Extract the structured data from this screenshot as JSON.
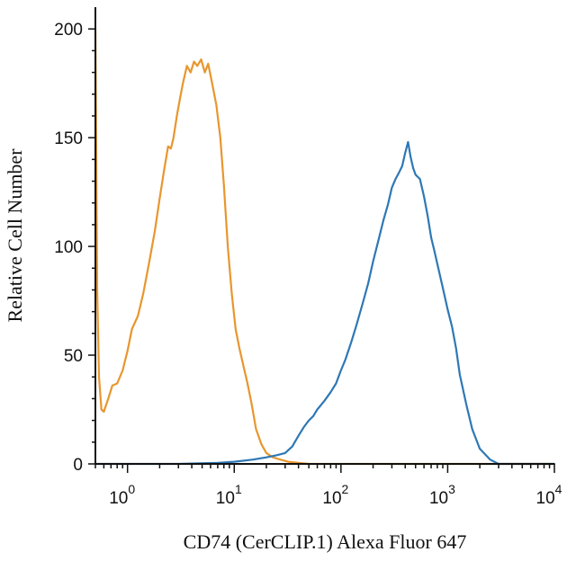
{
  "chart_data": {
    "type": "line",
    "title": "",
    "xlabel": "CD74 (CerCLIP.1) Alexa Fluor 647",
    "ylabel": "Relative Cell Number",
    "x_scale": "log",
    "xlim": [
      0.5,
      10000
    ],
    "ylim": [
      0,
      210
    ],
    "grid": false,
    "legend": "none",
    "y_ticks": [
      0,
      50,
      100,
      150,
      200
    ],
    "y_tick_labels": [
      "0",
      "50",
      "100",
      "150",
      "200"
    ],
    "x_ticks": [
      1,
      10,
      100,
      1000,
      10000
    ],
    "x_tick_labels": [
      {
        "base": "10",
        "exp": "0"
      },
      {
        "base": "10",
        "exp": "1"
      },
      {
        "base": "10",
        "exp": "2"
      },
      {
        "base": "10",
        "exp": "3"
      },
      {
        "base": "10",
        "exp": "4"
      }
    ],
    "series": [
      {
        "color": "#e8962e",
        "x": [
          0.5,
          0.51,
          0.52,
          0.54,
          0.57,
          0.6,
          0.66,
          0.72,
          0.8,
          0.9,
          1.0,
          1.1,
          1.25,
          1.4,
          1.6,
          1.8,
          2.0,
          2.2,
          2.4,
          2.55,
          2.7,
          2.9,
          3.1,
          3.3,
          3.6,
          3.9,
          4.2,
          4.5,
          4.9,
          5.3,
          5.7,
          6.2,
          6.8,
          7.4,
          8.0,
          8.7,
          9.5,
          10.3,
          11.2,
          12.2,
          13.3,
          14.5,
          16,
          18,
          20,
          23,
          27,
          32,
          40,
          50,
          60,
          100,
          1000,
          10000
        ],
        "y": [
          200,
          140,
          80,
          40,
          25,
          24,
          30,
          36,
          37,
          43,
          52,
          62,
          68,
          78,
          93,
          107,
          122,
          135,
          146,
          145,
          150,
          160,
          168,
          175,
          183,
          180,
          185,
          183,
          186,
          180,
          184,
          175,
          165,
          150,
          128,
          100,
          78,
          62,
          53,
          45,
          37,
          28,
          16,
          9,
          5,
          3,
          2,
          1,
          0.5,
          0,
          0,
          0,
          0,
          0
        ]
      },
      {
        "color": "#2e78b5",
        "x": [
          0.5,
          1,
          3,
          7,
          10,
          15,
          20,
          25,
          30,
          35,
          40,
          45,
          50,
          55,
          60,
          70,
          80,
          90,
          100,
          110,
          125,
          140,
          160,
          180,
          200,
          225,
          250,
          275,
          300,
          325,
          350,
          375,
          400,
          425,
          450,
          475,
          500,
          550,
          600,
          650,
          700,
          750,
          800,
          900,
          1000,
          1100,
          1200,
          1300,
          1500,
          1700,
          2000,
          2500,
          3000,
          10000
        ],
        "y": [
          0,
          0,
          0,
          0.5,
          1,
          2,
          3,
          4,
          5,
          8,
          13,
          17,
          20,
          22,
          25,
          29,
          33,
          37,
          43,
          48,
          56,
          64,
          74,
          83,
          93,
          103,
          112,
          119,
          127,
          131,
          134,
          137,
          143,
          148,
          141,
          136,
          133,
          131,
          123,
          114,
          104,
          98,
          92,
          81,
          71,
          63,
          53,
          41,
          27,
          16,
          7,
          2,
          0,
          0
        ]
      }
    ]
  }
}
